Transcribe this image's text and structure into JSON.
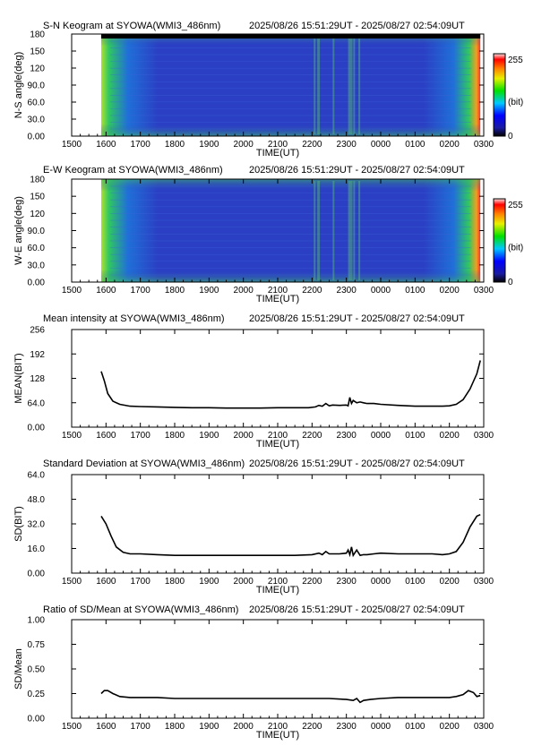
{
  "time_range": "2025/08/26 15:51:29UT - 2025/08/27 02:54:09UT",
  "xlabel": "TIME(UT)",
  "x_ticks": [
    "1500",
    "1600",
    "1700",
    "1800",
    "1900",
    "2000",
    "2100",
    "2200",
    "2300",
    "0000",
    "0100",
    "0200",
    "0300"
  ],
  "colorbar": {
    "max_label": "255",
    "mid_label": "(bit)",
    "min_label": "0"
  },
  "colors": {
    "line": "#000000",
    "keogram_bg": "#2a3fc4"
  },
  "chart_data": [
    {
      "type": "heatmap",
      "title": "S-N Keogram at SYOWA(WMI3_486nm)",
      "ylabel": "N-S angle(deg)",
      "y_ticks": [
        "0.00",
        "30.0",
        "60.0",
        "90.0",
        "120",
        "150",
        "180"
      ],
      "ylim": [
        0,
        180
      ],
      "xlim_hours": [
        15.0,
        27.0
      ],
      "data_extent_hours": [
        15.86,
        26.9
      ],
      "value_range": [
        0,
        255
      ]
    },
    {
      "type": "heatmap",
      "title": "E-W Keogram at SYOWA(WMI3_486nm)",
      "ylabel": "W-E angle(deg)",
      "y_ticks": [
        "0.00",
        "30.0",
        "60.0",
        "90.0",
        "120",
        "150",
        "180"
      ],
      "ylim": [
        0,
        180
      ],
      "xlim_hours": [
        15.0,
        27.0
      ],
      "data_extent_hours": [
        15.86,
        26.9
      ],
      "value_range": [
        0,
        255
      ]
    },
    {
      "type": "line",
      "title": "Mean intensity at SYOWA(WMI3_486nm)",
      "ylabel": "MEAN(BIT)",
      "y_ticks": [
        "0.00",
        "64.0",
        "128",
        "192",
        "256"
      ],
      "ylim": [
        0,
        256
      ],
      "xlim_hours": [
        15.0,
        27.0
      ],
      "x": [
        15.86,
        15.95,
        16.05,
        16.2,
        16.4,
        16.7,
        17.0,
        17.5,
        18.0,
        18.5,
        19.0,
        19.5,
        20.0,
        20.5,
        21.0,
        21.5,
        21.9,
        22.1,
        22.2,
        22.3,
        22.4,
        22.5,
        22.6,
        22.8,
        23.0,
        23.05,
        23.1,
        23.15,
        23.2,
        23.3,
        23.4,
        23.5,
        23.6,
        23.8,
        24.0,
        24.5,
        25.0,
        25.5,
        25.8,
        26.0,
        26.2,
        26.4,
        26.6,
        26.8,
        26.9
      ],
      "y": [
        146,
        122,
        88,
        68,
        60,
        55,
        54,
        53,
        52,
        51,
        51,
        50,
        50,
        50,
        51,
        51,
        51,
        53,
        57,
        55,
        62,
        56,
        58,
        57,
        58,
        56,
        78,
        62,
        70,
        64,
        66,
        64,
        62,
        62,
        60,
        57,
        55,
        55,
        55,
        56,
        60,
        72,
        100,
        140,
        175
      ]
    },
    {
      "type": "line",
      "title": "Standard Deviation at SYOWA(WMI3_486nm)",
      "ylabel": "SD(BIT)",
      "y_ticks": [
        "0.00",
        "16.0",
        "32.0",
        "48.0",
        "64.0"
      ],
      "ylim": [
        0,
        64
      ],
      "xlim_hours": [
        15.0,
        27.0
      ],
      "x": [
        15.86,
        16.0,
        16.15,
        16.3,
        16.5,
        16.7,
        17.0,
        17.5,
        18.0,
        18.5,
        19.0,
        19.5,
        20.0,
        20.5,
        21.0,
        21.5,
        22.0,
        22.2,
        22.3,
        22.4,
        22.5,
        22.6,
        22.8,
        23.0,
        23.05,
        23.1,
        23.15,
        23.2,
        23.3,
        23.4,
        23.5,
        23.6,
        23.8,
        24.0,
        24.5,
        25.0,
        25.5,
        25.8,
        26.0,
        26.2,
        26.4,
        26.6,
        26.8,
        26.9
      ],
      "y": [
        37,
        32,
        24,
        17,
        13.5,
        12.5,
        12.5,
        12,
        11.5,
        11.5,
        11.5,
        11.5,
        11.5,
        11.5,
        11.5,
        11.5,
        12,
        13,
        12,
        14,
        12.5,
        12.5,
        12.5,
        13,
        15,
        12,
        17,
        11.5,
        15,
        11.5,
        12,
        12,
        12.5,
        13,
        12.5,
        12.5,
        12.5,
        12,
        12.5,
        14,
        20,
        30,
        37,
        38
      ]
    },
    {
      "type": "line",
      "title": "Ratio of SD/Mean at SYOWA(WMI3_486nm)",
      "ylabel": "SD/Mean",
      "y_ticks": [
        "0.00",
        "0.25",
        "0.50",
        "0.75",
        "1.00"
      ],
      "ylim": [
        0,
        1
      ],
      "xlim_hours": [
        15.0,
        27.0
      ],
      "x": [
        15.86,
        15.95,
        16.05,
        16.2,
        16.4,
        16.7,
        17.0,
        17.5,
        18.0,
        18.5,
        19.0,
        19.5,
        20.0,
        20.5,
        21.0,
        21.5,
        22.0,
        22.5,
        23.0,
        23.2,
        23.3,
        23.4,
        23.5,
        23.7,
        24.0,
        24.5,
        25.0,
        25.5,
        26.0,
        26.2,
        26.4,
        26.55,
        26.7,
        26.8,
        26.9
      ],
      "y": [
        0.25,
        0.28,
        0.28,
        0.25,
        0.22,
        0.21,
        0.21,
        0.21,
        0.2,
        0.2,
        0.2,
        0.2,
        0.2,
        0.2,
        0.2,
        0.2,
        0.2,
        0.2,
        0.19,
        0.18,
        0.2,
        0.16,
        0.18,
        0.19,
        0.2,
        0.21,
        0.21,
        0.21,
        0.21,
        0.22,
        0.24,
        0.28,
        0.26,
        0.22,
        0.23
      ]
    }
  ]
}
